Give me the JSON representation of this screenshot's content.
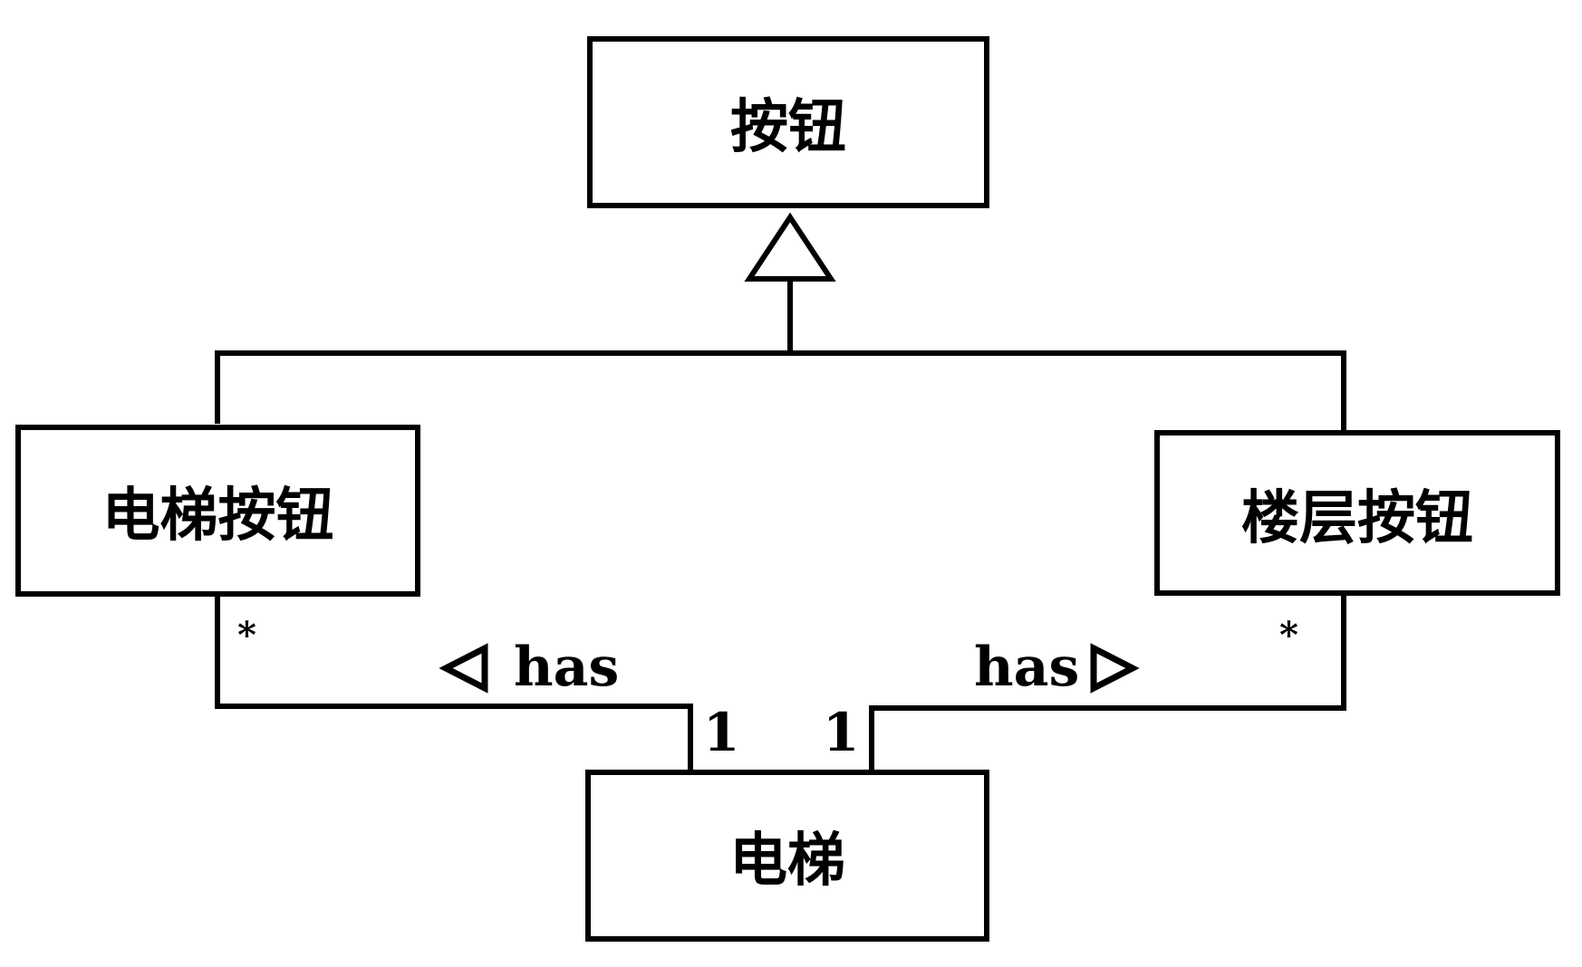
{
  "diagram": {
    "type": "uml-class-diagram",
    "colors": {
      "stroke": "#000000",
      "fill": "#ffffff"
    },
    "classes": {
      "button": "按钮",
      "elevator_button": "电梯按钮",
      "floor_button": "楼层按钮",
      "elevator": "电梯"
    },
    "relationships": {
      "generalization": {
        "parent": "按钮",
        "children": [
          "电梯按钮",
          "楼层按钮"
        ]
      },
      "association_left": {
        "label": "has",
        "direction_icon": "triangle-left-icon",
        "from": "电梯",
        "to": "电梯按钮",
        "multiplicity_elevator": "1",
        "multiplicity_buttons": "*"
      },
      "association_right": {
        "label": "has",
        "direction_icon": "triangle-right-icon",
        "from": "电梯",
        "to": "楼层按钮",
        "multiplicity_elevator": "1",
        "multiplicity_buttons": "*"
      }
    }
  }
}
